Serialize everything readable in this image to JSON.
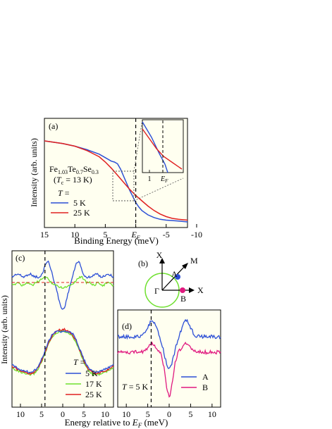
{
  "colors": {
    "blue": "#2c4fd6",
    "red": "#e02020",
    "green": "#6ee02e",
    "magenta": "#e0197f",
    "panel_bg": "#fffff0",
    "dashed": "#000000"
  },
  "chart_data": [
    {
      "panel": "(a)",
      "type": "line",
      "xlabel": "Binding Energy (meV)",
      "ylabel": "Intensity (arb. units)",
      "xlim": [
        15,
        -8.5
      ],
      "x_ticks": [
        "15",
        "10",
        "5",
        "E_F",
        "-5",
        "-10"
      ],
      "x_tick_values": [
        15,
        10,
        5,
        0,
        -5,
        -10
      ],
      "vline": 0,
      "annotations": {
        "compound": "Fe1.03Te0.7Se0.3",
        "tc": "(Tc = 13 K)",
        "t_label": "T =",
        "legend": [
          "5 K",
          "25 K"
        ]
      },
      "series": [
        {
          "name": "5 K",
          "color": "blue",
          "x": [
            15,
            12,
            10,
            8,
            6,
            5,
            4,
            3.5,
            3,
            2.5,
            2,
            1.5,
            1,
            0.5,
            0,
            -0.5,
            -1,
            -2,
            -3,
            -4,
            -5,
            -6,
            -7,
            -8.5
          ],
          "y": [
            0.92,
            0.89,
            0.86,
            0.82,
            0.77,
            0.73,
            0.69,
            0.68,
            0.66,
            0.6,
            0.52,
            0.44,
            0.36,
            0.29,
            0.22,
            0.17,
            0.13,
            0.08,
            0.05,
            0.03,
            0.02,
            0.015,
            0.01,
            0.0
          ]
        },
        {
          "name": "25 K",
          "color": "red",
          "x": [
            15,
            12,
            10,
            8,
            6,
            5,
            4,
            3,
            2,
            1,
            0,
            -1,
            -2,
            -3,
            -4,
            -5,
            -6,
            -7,
            -8.5
          ],
          "y": [
            0.92,
            0.89,
            0.86,
            0.81,
            0.74,
            0.68,
            0.61,
            0.53,
            0.45,
            0.37,
            0.3,
            0.24,
            0.18,
            0.13,
            0.09,
            0.06,
            0.04,
            0.03,
            0.02
          ]
        }
      ],
      "inset": {
        "x_ticks": [
          "1",
          "E_F"
        ],
        "x_tick_values": [
          1,
          0
        ]
      }
    },
    {
      "panel": "(b)",
      "type": "diagram",
      "labels": {
        "x_top": "X",
        "m": "M",
        "a": "A",
        "gamma": "Γ",
        "b": "B",
        "x_right": "X"
      }
    },
    {
      "panel": "(c)",
      "type": "line",
      "xlim": [
        12,
        -12
      ],
      "x_ticks": [
        "10",
        "5",
        "0",
        "-5",
        "-10"
      ],
      "x_tick_values": [
        10,
        5,
        0,
        -5,
        -10
      ],
      "x_tick_text": [
        "10",
        "5",
        "0",
        "5",
        "10"
      ],
      "vline": 4.2,
      "ylabel": "Intensity (arb. units)",
      "t_label": "T =",
      "legend": [
        "5 K",
        "17 K",
        "25 K"
      ],
      "series_colors": [
        "blue",
        "green",
        "red"
      ]
    },
    {
      "panel": "(d)",
      "type": "line",
      "xlim": [
        12,
        -12
      ],
      "x_ticks": [
        "10",
        "5",
        "0",
        "-5",
        "-10"
      ],
      "x_tick_values": [
        10,
        5,
        0,
        -5,
        -10
      ],
      "x_tick_text": [
        "10",
        "5",
        "0",
        "5",
        "10"
      ],
      "vline": 4.2,
      "t_text": "T = 5 K",
      "legend": [
        "A",
        "B"
      ],
      "series_colors": [
        "blue",
        "magenta"
      ]
    }
  ],
  "shared_xlabel": "Energy relative to E_F (meV)"
}
